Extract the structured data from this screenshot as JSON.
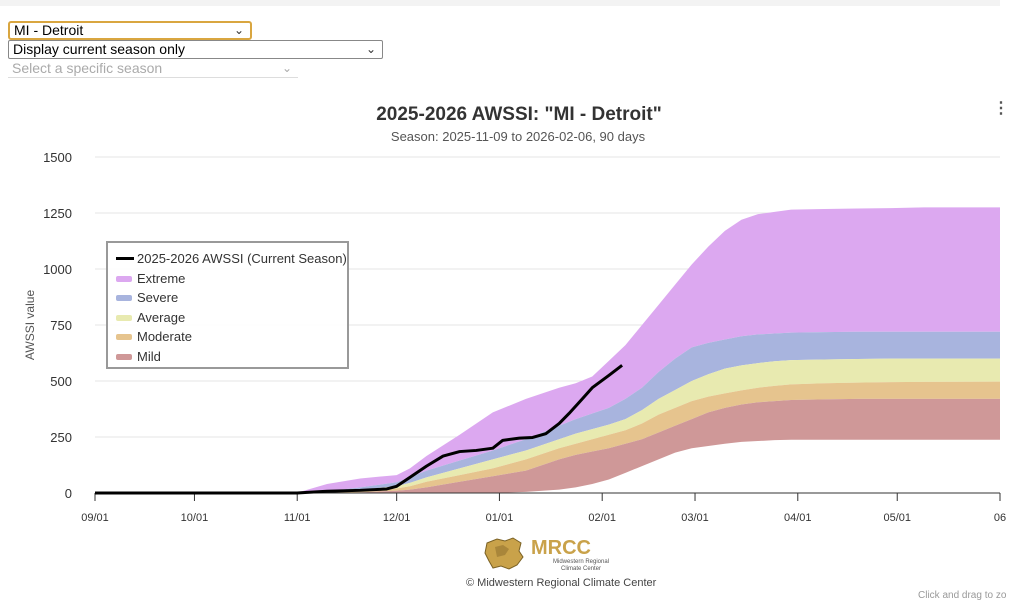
{
  "controls": {
    "station_select": "MI - Detroit",
    "mode_select": "Display current season only",
    "season_placeholder": "Select a specific season"
  },
  "chart_data": {
    "type": "area",
    "title": "2025-2026 AWSSI: \"MI - Detroit\"",
    "subtitle": "Season: 2025-11-09 to 2026-02-06, 90 days",
    "ylabel": "AWSSI value",
    "xlabel": "",
    "ylim": [
      0,
      1500
    ],
    "yticks": [
      0,
      250,
      500,
      750,
      1000,
      1250,
      1500
    ],
    "x_tick_labels": [
      "09/01",
      "10/01",
      "11/01",
      "12/01",
      "01/01",
      "02/01",
      "03/01",
      "04/01",
      "05/01",
      "06"
    ],
    "x_days": [
      0,
      30,
      61,
      91,
      122,
      153,
      181,
      212,
      242,
      273
    ],
    "x_domain_days": [
      0,
      273
    ],
    "legend": [
      {
        "name": "2025-2026 AWSSI (Current Season)",
        "color": "#000000"
      },
      {
        "name": "Extreme",
        "color": "#dca8f0"
      },
      {
        "name": "Severe",
        "color": "#a8b4de"
      },
      {
        "name": "Average",
        "color": "#e8eab0"
      },
      {
        "name": "Moderate",
        "color": "#e6c48e"
      },
      {
        "name": "Mild",
        "color": "#cf9898"
      }
    ],
    "band_days": [
      0,
      60,
      63,
      70,
      80,
      91,
      95,
      100,
      110,
      120,
      130,
      140,
      145,
      150,
      155,
      160,
      165,
      170,
      175,
      180,
      185,
      190,
      195,
      200,
      205,
      210,
      220,
      230,
      240,
      250,
      273
    ],
    "bands": {
      "extreme": [
        0,
        0,
        10,
        40,
        65,
        80,
        110,
        165,
        260,
        360,
        420,
        470,
        490,
        520,
        590,
        660,
        750,
        840,
        930,
        1020,
        1100,
        1170,
        1220,
        1245,
        1255,
        1265,
        1268,
        1270,
        1272,
        1275,
        1275
      ],
      "severe": [
        0,
        0,
        0,
        8,
        25,
        48,
        70,
        100,
        145,
        190,
        240,
        300,
        330,
        355,
        380,
        420,
        470,
        540,
        600,
        650,
        670,
        685,
        700,
        708,
        712,
        716,
        718,
        720,
        720,
        720,
        720
      ],
      "average": [
        0,
        0,
        0,
        4,
        15,
        30,
        45,
        70,
        110,
        150,
        190,
        240,
        265,
        285,
        305,
        330,
        370,
        420,
        460,
        500,
        530,
        555,
        570,
        580,
        588,
        593,
        596,
        598,
        600,
        600,
        600
      ],
      "moderate": [
        0,
        0,
        0,
        2,
        8,
        20,
        30,
        50,
        80,
        110,
        150,
        200,
        220,
        240,
        260,
        280,
        310,
        350,
        380,
        410,
        430,
        445,
        458,
        470,
        478,
        485,
        490,
        493,
        495,
        496,
        497
      ],
      "mild": [
        0,
        0,
        0,
        0,
        3,
        10,
        15,
        25,
        50,
        75,
        100,
        150,
        170,
        185,
        200,
        220,
        240,
        270,
        300,
        330,
        360,
        380,
        395,
        405,
        410,
        415,
        418,
        420,
        420,
        420,
        420
      ],
      "mild_base": [
        0,
        0,
        0,
        0,
        0,
        0,
        0,
        0,
        0,
        0,
        5,
        15,
        25,
        40,
        60,
        90,
        120,
        150,
        180,
        200,
        210,
        220,
        228,
        232,
        236,
        238,
        238,
        238,
        238,
        238,
        238
      ]
    },
    "current_season": {
      "days": [
        0,
        30,
        61,
        64,
        70,
        80,
        88,
        91,
        95,
        100,
        105,
        110,
        115,
        120,
        123,
        128,
        132,
        136,
        140,
        143,
        147,
        150,
        155,
        159
      ],
      "values": [
        0,
        0,
        0,
        3,
        8,
        12,
        18,
        30,
        70,
        120,
        165,
        185,
        190,
        200,
        235,
        245,
        248,
        265,
        310,
        355,
        420,
        470,
        525,
        570
      ]
    }
  },
  "footer": {
    "logo_text": "MRCC",
    "logo_subtext_1": "Midwestern Regional",
    "logo_subtext_2": "Climate Center",
    "copyright": "© Midwestern Regional Climate Center",
    "hint": "Click and drag to zo"
  }
}
